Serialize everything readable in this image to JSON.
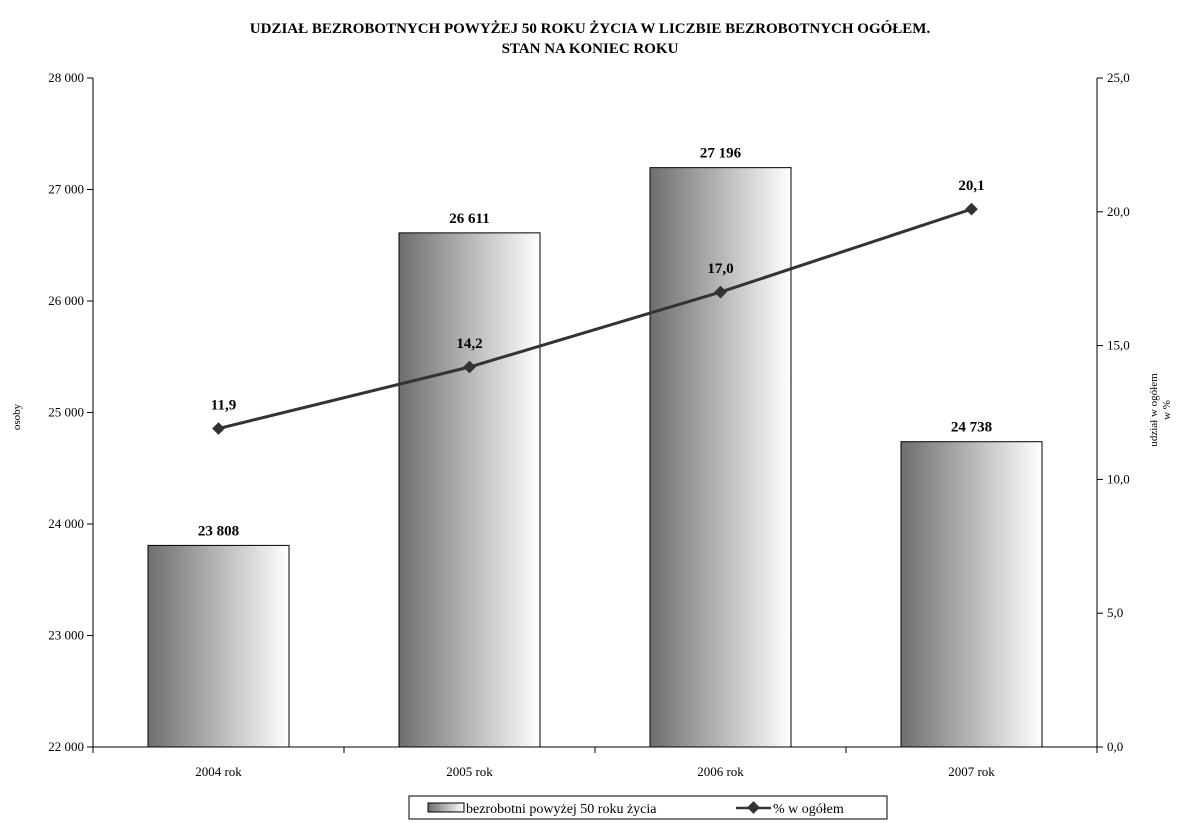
{
  "chart_data": {
    "type": "bar",
    "title_line1": "UDZIAŁ BEZROBOTNYCH POWYŻEJ 50 ROKU ŻYCIA W LICZBIE BEZROBOTNYCH OGÓŁEM.",
    "title_line2": "STAN NA KONIEC ROKU",
    "categories": [
      "2004 rok",
      "2005 rok",
      "2006 rok",
      "2007 rok"
    ],
    "bar_series": {
      "name": "bezrobotni powyżej 50 roku życia",
      "values": [
        23808,
        26611,
        27196,
        24738
      ],
      "labels": [
        "23 808",
        "26 611",
        "27 196",
        "24 738"
      ]
    },
    "line_series": {
      "name": "% w ogółem",
      "values": [
        11.9,
        14.2,
        17.0,
        20.1
      ],
      "labels": [
        "11,9",
        "14,2",
        "17,0",
        "20,1"
      ]
    },
    "ylabel_left": "osoby",
    "ylabel_right_line1": "udział w ogółem",
    "ylabel_right_line2": "w %",
    "ylim_left": [
      22000,
      28000
    ],
    "ylim_right": [
      0,
      25
    ],
    "left_ticks": [
      {
        "value": 22000,
        "label": "22 000"
      },
      {
        "value": 23000,
        "label": "23 000"
      },
      {
        "value": 24000,
        "label": "24 000"
      },
      {
        "value": 25000,
        "label": "25 000"
      },
      {
        "value": 26000,
        "label": "26 000"
      },
      {
        "value": 27000,
        "label": "27 000"
      },
      {
        "value": 28000,
        "label": "28 000"
      }
    ],
    "right_ticks": [
      {
        "value": 0,
        "label": "0,0"
      },
      {
        "value": 5,
        "label": "5,0"
      },
      {
        "value": 10,
        "label": "10,0"
      },
      {
        "value": 15,
        "label": "15,0"
      },
      {
        "value": 20,
        "label": "20,0"
      },
      {
        "value": 25,
        "label": "25,0"
      }
    ],
    "grid": false,
    "legend_position": "bottom",
    "colors": {
      "bar_dark": "#6e6e6e",
      "bar_light": "#ffffff",
      "line": "#333333",
      "marker": "#333333"
    }
  }
}
